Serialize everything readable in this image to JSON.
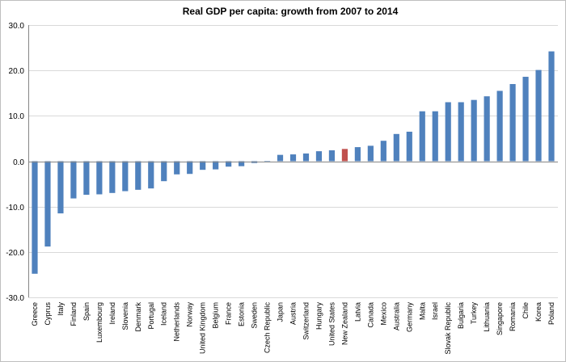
{
  "chart_data": {
    "type": "bar",
    "title": "Real GDP per capita: growth from 2007 to 2014",
    "xlabel": "",
    "ylabel": "",
    "ylim": [
      -30,
      30
    ],
    "ytick_step": 10,
    "ytick_labels": [
      "30.0",
      "20.0",
      "10.0",
      "0.0",
      "-10.0",
      "-20.0",
      "-30.0"
    ],
    "grid": true,
    "legend": "none",
    "categories": [
      "Greece",
      "Cyprus",
      "Italy",
      "Finland",
      "Spain",
      "Luxembourg",
      "Ireland",
      "Slovenia",
      "Denmark",
      "Portugal",
      "Iceland",
      "Netherlands",
      "Norway",
      "United Kingdom",
      "Belgium",
      "France",
      "Estonia",
      "Sweden",
      "Czech Republic",
      "Japan",
      "Austria",
      "Switzerland",
      "Hungary",
      "United States",
      "New Zealand",
      "Latvia",
      "Canada",
      "Mexico",
      "Australia",
      "Germany",
      "Malta",
      "Israel",
      "Slovak Republic",
      "Bulgaria",
      "Turkey",
      "Lithuania",
      "Singapore",
      "Romania",
      "Chile",
      "Korea",
      "Poland"
    ],
    "values": [
      -24.8,
      -18.8,
      -11.5,
      -8.2,
      -7.4,
      -7.3,
      -7.0,
      -6.6,
      -6.3,
      -6.0,
      -4.4,
      -2.9,
      -2.8,
      -1.9,
      -1.8,
      -1.2,
      -1.1,
      -0.4,
      -0.2,
      1.4,
      1.5,
      1.7,
      2.2,
      2.4,
      2.7,
      3.1,
      3.4,
      4.5,
      6.0,
      6.5,
      11.0,
      11.0,
      13.0,
      13.0,
      13.5,
      14.3,
      15.5,
      17.0,
      18.6,
      20.1,
      24.2
    ],
    "colors": {
      "default": "#4f81bd",
      "highlight": "#c0504d"
    },
    "highlight_category": "New Zealand"
  }
}
